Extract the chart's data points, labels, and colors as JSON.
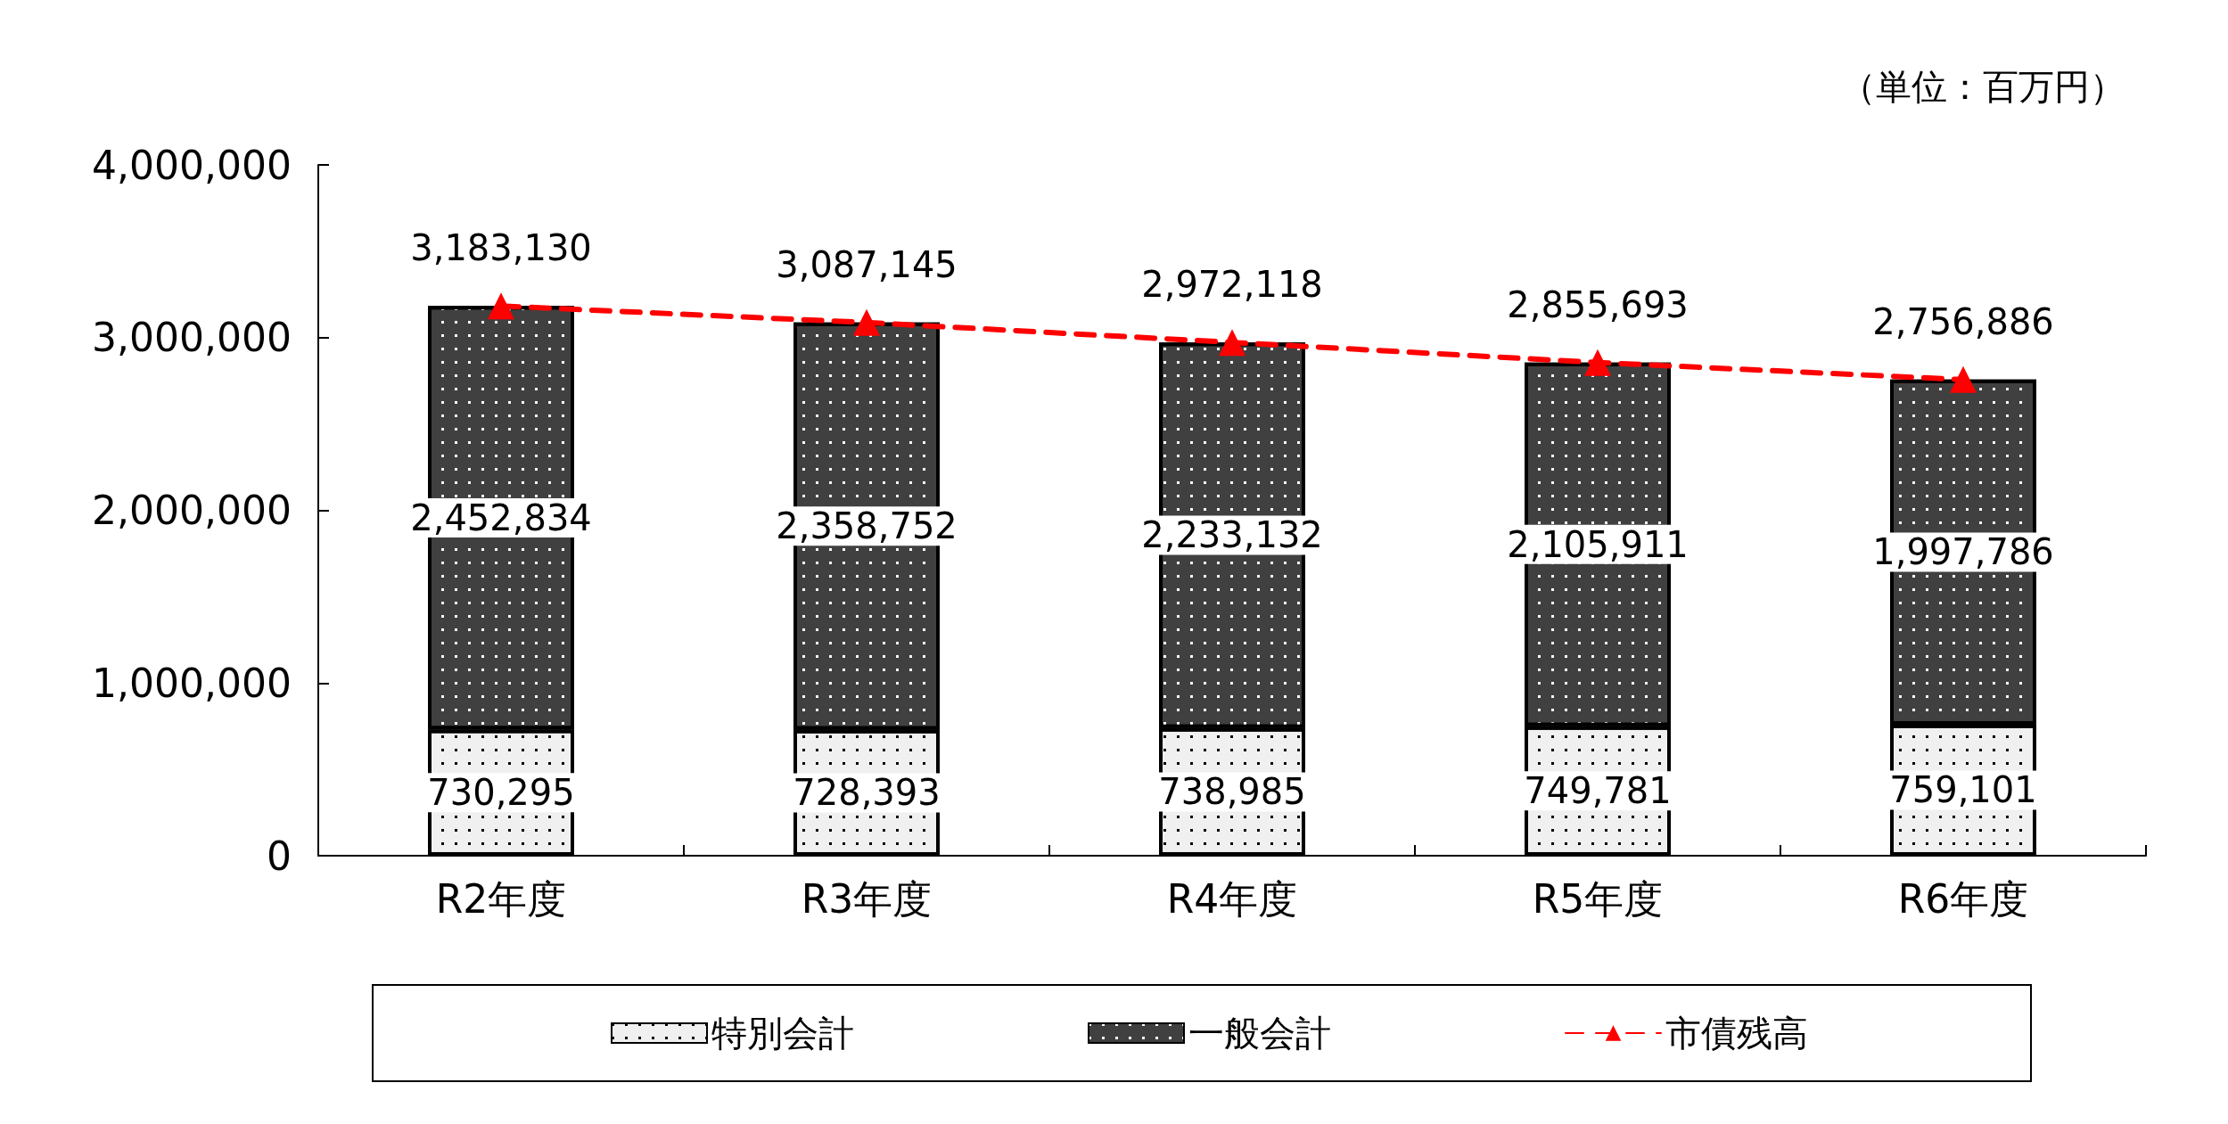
{
  "chart_data": {
    "type": "bar",
    "stacked": true,
    "annotations": [
      "（単位：百万円）"
    ],
    "categories": [
      "R2年度",
      "R3年度",
      "R4年度",
      "R5年度",
      "R6年度"
    ],
    "series": [
      {
        "name": "特別会計",
        "color": "#f0f0f0",
        "values": [
          730295,
          728393,
          738985,
          749781,
          759101
        ],
        "value_labels": [
          "730,295",
          "728,393",
          "738,985",
          "749,781",
          "759,101"
        ]
      },
      {
        "name": "一般会計",
        "color": "#404040",
        "values": [
          2452834,
          2358752,
          2233132,
          2105911,
          1997786
        ],
        "value_labels": [
          "2,452,834",
          "2,358,752",
          "2,233,132",
          "2,105,911",
          "1,997,786"
        ]
      },
      {
        "name": "市債残高",
        "type": "line",
        "color": "#ff0000",
        "marker": "triangle",
        "line_style": "dashed",
        "values": [
          3183130,
          3087145,
          2972118,
          2855693,
          2756886
        ],
        "value_labels": [
          "3,183,130",
          "3,087,145",
          "2,972,118",
          "2,855,693",
          "2,756,886"
        ]
      }
    ],
    "ylim": [
      0,
      4000000
    ],
    "yticks": [
      0,
      {
        "value": 1000000,
        "label": "1,000,000"
      },
      {
        "value": 2000000,
        "label": "2,000,000"
      },
      {
        "value": 3000000,
        "label": "3,000,000"
      },
      {
        "value": 4000000,
        "label": "4,000,000"
      }
    ],
    "grid": false,
    "legend": "bottom"
  }
}
